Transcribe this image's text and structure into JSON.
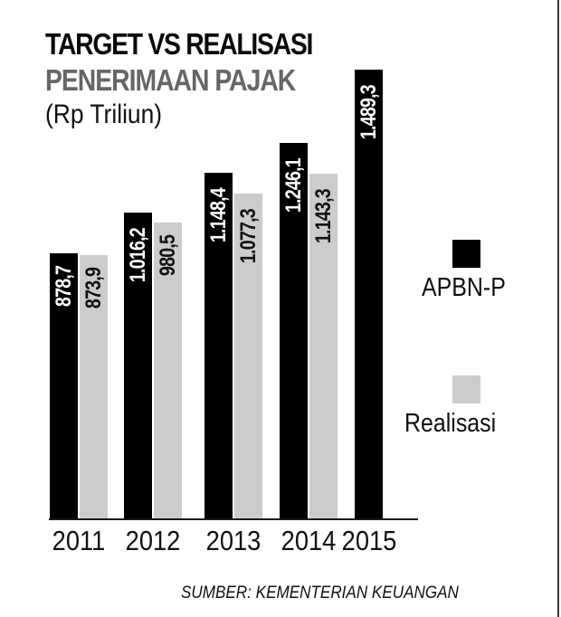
{
  "header": {
    "title": "TARGET VS REALISASI",
    "subtitle": "PENERIMAAN PAJAK",
    "unit": "(Rp Triliun)"
  },
  "legend": {
    "items": [
      {
        "label": "APBN-P",
        "color": "#000000"
      },
      {
        "label": "Realisasi",
        "color": "#cccccc"
      }
    ]
  },
  "footer": {
    "source": "SUMBER: KEMENTERIAN KEUANGAN"
  },
  "chart_data": {
    "type": "bar",
    "title": "TARGET VS REALISASI PENERIMAAN PAJAK",
    "subtitle": "(Rp Triliun)",
    "xlabel": "",
    "ylabel": "Rp Triliun",
    "categories": [
      "2011",
      "2012",
      "2013",
      "2014",
      "2015"
    ],
    "series": [
      {
        "name": "APBN-P",
        "color": "#000000",
        "values": [
          878.7,
          1016.2,
          1148.4,
          1246.1,
          1489.3
        ],
        "labels": [
          "878,7",
          "1.016,2",
          "1.148,4",
          "1.246,1",
          "1.489,3"
        ]
      },
      {
        "name": "Realisasi",
        "color": "#cccccc",
        "values": [
          873.9,
          980.5,
          1077.3,
          1143.3,
          null
        ],
        "labels": [
          "873,9",
          "980,5",
          "1.077,3",
          "1.143,3",
          ""
        ]
      }
    ],
    "ylim": [
      0,
      1500
    ],
    "grid": false,
    "legend_position": "right",
    "annotations": [
      "SUMBER: KEMENTERIAN KEUANGAN"
    ]
  }
}
